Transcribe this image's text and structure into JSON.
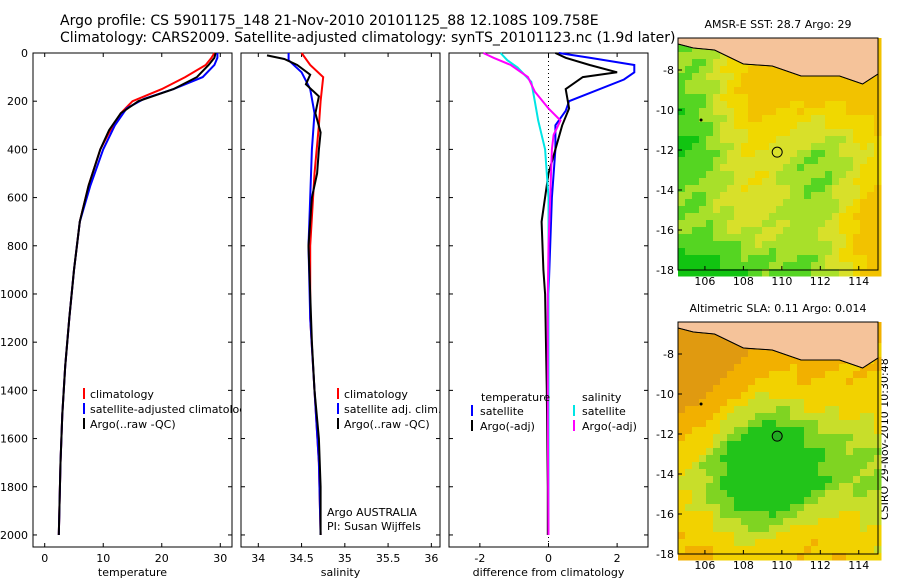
{
  "header": {
    "line1": "Argo profile: CS 5901175_148 21-Nov-2010 20101125_88 12.108S 109.758E",
    "line2": "Climatology: CARS2009. Satellite-adjusted climatology: synTS_20101123.nc (1.9d later)"
  },
  "credit": "CSIRO 29-Nov-2010 10:30:48",
  "colors": {
    "climatology": "#ff0000",
    "satellite": "#0000ff",
    "argo": "#000000",
    "sat_salinity": "#00e5e5",
    "argo_salinity": "#ff00ff",
    "land": "#f5c39a"
  },
  "chart_data": [
    {
      "type": "line",
      "xlabel": "temperature",
      "xlim": [
        -2,
        32
      ],
      "ylim": [
        2050,
        0
      ],
      "xticks": [
        0,
        10,
        20,
        30
      ],
      "yticks": [
        0,
        200,
        400,
        600,
        800,
        1000,
        1200,
        1400,
        1600,
        1800,
        2000
      ],
      "legend": [
        "climatology",
        "satellite-adjusted climatology",
        "Argo(..raw -QC)"
      ],
      "series": [
        {
          "name": "climatology",
          "color": "#ff0000",
          "points": [
            [
              29,
              0
            ],
            [
              28.5,
              20
            ],
            [
              27.5,
              50
            ],
            [
              24,
              100
            ],
            [
              20,
              150
            ],
            [
              15,
              200
            ],
            [
              13,
              250
            ],
            [
              11,
              330
            ],
            [
              9.5,
              400
            ],
            [
              7.5,
              550
            ],
            [
              6,
              700
            ],
            [
              5,
              900
            ],
            [
              4.2,
              1100
            ],
            [
              3.5,
              1300
            ],
            [
              3,
              1500
            ],
            [
              2.7,
              1700
            ],
            [
              2.4,
              2000
            ]
          ]
        },
        {
          "name": "satellite-adjusted climatology",
          "color": "#0000ff",
          "points": [
            [
              29.5,
              0
            ],
            [
              29.5,
              20
            ],
            [
              29,
              50
            ],
            [
              27,
              100
            ],
            [
              22,
              150
            ],
            [
              17,
              190
            ],
            [
              14,
              230
            ],
            [
              12,
              300
            ],
            [
              10,
              400
            ],
            [
              7.8,
              550
            ],
            [
              6,
              700
            ],
            [
              5,
              900
            ],
            [
              4.2,
              1100
            ],
            [
              3.5,
              1300
            ],
            [
              3,
              1500
            ],
            [
              2.7,
              1700
            ],
            [
              2.4,
              2000
            ]
          ]
        },
        {
          "name": "Argo(..raw -QC)",
          "color": "#000000",
          "points": [
            [
              29.2,
              0
            ],
            [
              29,
              20
            ],
            [
              28,
              50
            ],
            [
              26,
              100
            ],
            [
              22,
              150
            ],
            [
              16,
              200
            ],
            [
              13,
              250
            ],
            [
              11,
              320
            ],
            [
              9.5,
              400
            ],
            [
              7.5,
              550
            ],
            [
              6,
              700
            ],
            [
              5,
              900
            ],
            [
              4.2,
              1100
            ],
            [
              3.5,
              1300
            ],
            [
              3,
              1500
            ],
            [
              2.7,
              1700
            ],
            [
              2.4,
              2000
            ]
          ]
        }
      ]
    },
    {
      "type": "line",
      "xlabel": "salinity",
      "xlim": [
        33.8,
        36.1
      ],
      "ylim": [
        2050,
        0
      ],
      "xticks": [
        34,
        34.5,
        35,
        35.5,
        36
      ],
      "yticks": [
        0,
        200,
        400,
        600,
        800,
        1000,
        1200,
        1400,
        1600,
        1800,
        2000
      ],
      "legend": [
        "climatology",
        "satellite adj. clim.",
        "Argo(..raw -QC)"
      ],
      "annotations": [
        "Argo AUSTRALIA",
        "PI: Susan Wijffels"
      ],
      "series": [
        {
          "name": "climatology",
          "color": "#ff0000",
          "points": [
            [
              34.5,
              0
            ],
            [
              34.6,
              50
            ],
            [
              34.75,
              100
            ],
            [
              34.72,
              200
            ],
            [
              34.7,
              300
            ],
            [
              34.65,
              500
            ],
            [
              34.6,
              800
            ],
            [
              34.6,
              1100
            ],
            [
              34.65,
              1400
            ],
            [
              34.7,
              1700
            ],
            [
              34.72,
              2000
            ]
          ]
        },
        {
          "name": "satellite adj. clim.",
          "color": "#0000ff",
          "points": [
            [
              34.35,
              0
            ],
            [
              34.35,
              30
            ],
            [
              34.5,
              80
            ],
            [
              34.6,
              150
            ],
            [
              34.65,
              250
            ],
            [
              34.62,
              400
            ],
            [
              34.6,
              600
            ],
            [
              34.58,
              800
            ],
            [
              34.6,
              1100
            ],
            [
              34.65,
              1400
            ],
            [
              34.7,
              1700
            ],
            [
              34.72,
              2000
            ]
          ]
        },
        {
          "name": "Argo(..raw -QC)",
          "color": "#000000",
          "points": [
            [
              34.1,
              10
            ],
            [
              34.3,
              25
            ],
            [
              34.45,
              50
            ],
            [
              34.6,
              90
            ],
            [
              34.55,
              130
            ],
            [
              34.7,
              180
            ],
            [
              34.66,
              250
            ],
            [
              34.72,
              330
            ],
            [
              34.7,
              400
            ],
            [
              34.68,
              500
            ],
            [
              34.62,
              600
            ],
            [
              34.6,
              700
            ],
            [
              34.58,
              800
            ],
            [
              34.6,
              1000
            ],
            [
              34.62,
              1200
            ],
            [
              34.65,
              1400
            ],
            [
              34.7,
              1600
            ],
            [
              34.72,
              1800
            ],
            [
              34.72,
              2000
            ]
          ]
        }
      ]
    },
    {
      "type": "line",
      "xlabel": "difference from climatology",
      "xlim": [
        -2.9,
        2.9
      ],
      "ylim": [
        2050,
        0
      ],
      "xticks": [
        -2,
        0,
        2
      ],
      "yticks": [
        0,
        200,
        400,
        600,
        800,
        1000,
        1200,
        1400,
        1600,
        1800,
        2000
      ],
      "legend_left": {
        "heading": "temperature",
        "items": [
          "satellite",
          "Argo(-adj)"
        ]
      },
      "legend_right": {
        "heading": "salinity",
        "items": [
          "satellite",
          "Argo(-adj)"
        ]
      },
      "series": [
        {
          "name": "temperature satellite",
          "color": "#0000ff",
          "points": [
            [
              0.3,
              0
            ],
            [
              1.2,
              20
            ],
            [
              2.5,
              50
            ],
            [
              2.5,
              80
            ],
            [
              2.2,
              110
            ],
            [
              0.6,
              200
            ],
            [
              0.5,
              240
            ],
            [
              0.2,
              300
            ],
            [
              0.2,
              400
            ],
            [
              0.1,
              600
            ],
            [
              0.05,
              800
            ],
            [
              0,
              1000
            ],
            [
              0,
              1500
            ],
            [
              0,
              2000
            ]
          ]
        },
        {
          "name": "temperature Argo(-adj)",
          "color": "#000000",
          "points": [
            [
              0.2,
              0
            ],
            [
              0.5,
              20
            ],
            [
              1.2,
              50
            ],
            [
              2,
              80
            ],
            [
              1,
              100
            ],
            [
              0.5,
              150
            ],
            [
              0.6,
              230
            ],
            [
              0.4,
              300
            ],
            [
              0.2,
              400
            ],
            [
              0,
              500
            ],
            [
              -0.2,
              700
            ],
            [
              -0.15,
              900
            ],
            [
              -0.1,
              1000
            ],
            [
              -0.05,
              1400
            ],
            [
              -0.02,
              1800
            ],
            [
              -0.02,
              2000
            ]
          ]
        },
        {
          "name": "salinity satellite",
          "color": "#00e5e5",
          "points": [
            [
              -1.4,
              0
            ],
            [
              -1.2,
              30
            ],
            [
              -0.9,
              60
            ],
            [
              -0.5,
              120
            ],
            [
              -0.4,
              200
            ],
            [
              -0.3,
              280
            ],
            [
              -0.1,
              400
            ],
            [
              0,
              600
            ],
            [
              0,
              1000
            ],
            [
              0,
              1500
            ],
            [
              0,
              2000
            ]
          ]
        },
        {
          "name": "salinity Argo(-adj)",
          "color": "#ff00ff",
          "points": [
            [
              -1.9,
              0
            ],
            [
              -1.6,
              20
            ],
            [
              -1.1,
              50
            ],
            [
              -0.6,
              100
            ],
            [
              -0.4,
              160
            ],
            [
              0,
              230
            ],
            [
              0.35,
              280
            ],
            [
              0.15,
              340
            ],
            [
              0.1,
              400
            ],
            [
              0.05,
              600
            ],
            [
              0,
              800
            ],
            [
              -0.02,
              1000
            ],
            [
              -0.02,
              1500
            ],
            [
              0,
              2000
            ]
          ]
        }
      ]
    },
    {
      "type": "heatmap",
      "title": "AMSR-E SST: 28.7 Argo: 29",
      "xlim": [
        104.6,
        115
      ],
      "ylim": [
        -18,
        -6.4
      ],
      "xticks": [
        106,
        108,
        110,
        112,
        114
      ],
      "yticks": [
        -18,
        -16,
        -14,
        -12,
        -10,
        -8
      ],
      "argo_position": [
        109.758,
        -12.108
      ]
    },
    {
      "type": "heatmap",
      "title": "Altimetric SLA: 0.11 Argo: 0.014",
      "xlim": [
        104.6,
        115
      ],
      "ylim": [
        -18,
        -6.4
      ],
      "xticks": [
        106,
        108,
        110,
        112,
        114
      ],
      "yticks": [
        -18,
        -16,
        -14,
        -12,
        -10,
        -8
      ],
      "argo_position": [
        109.758,
        -12.108
      ]
    }
  ]
}
